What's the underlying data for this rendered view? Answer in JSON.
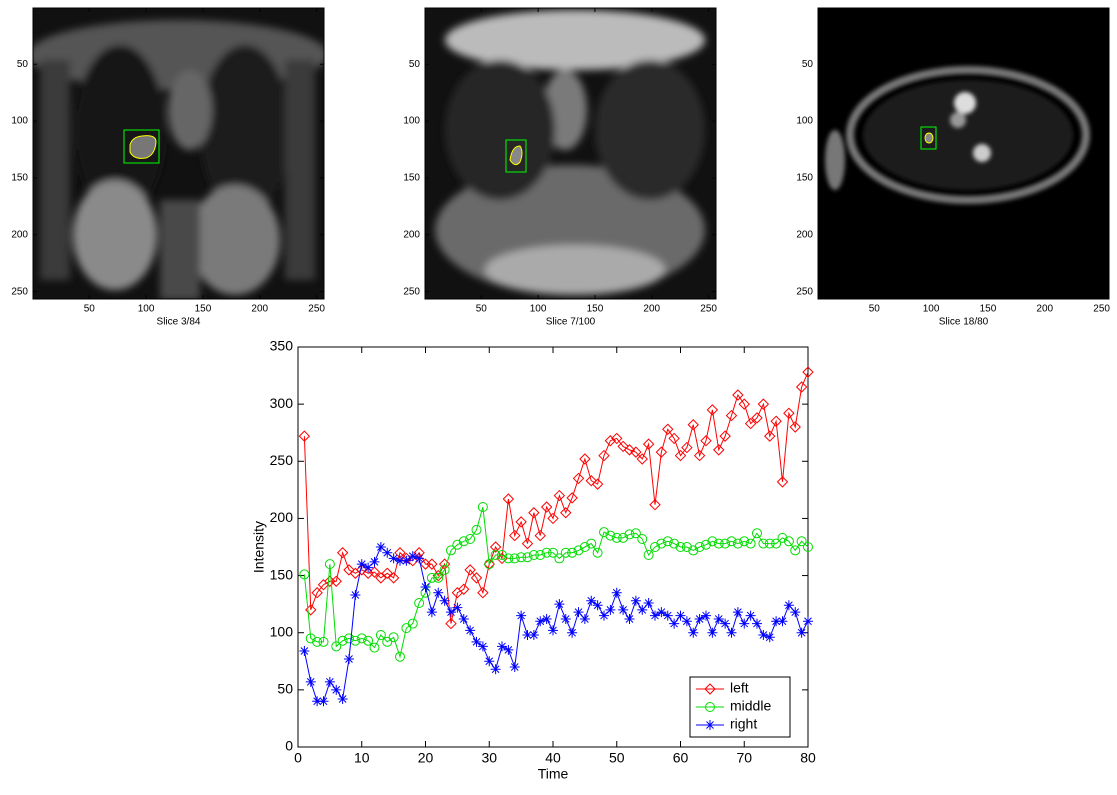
{
  "chart_data": [
    {
      "type": "image",
      "xlabel": "Slice 3/84",
      "xlim": [
        0.5,
        256.5
      ],
      "ylim": [
        0.5,
        256.5
      ],
      "y_reversed": true,
      "xticks": [
        50,
        100,
        150,
        200,
        250
      ],
      "yticks": [
        50,
        100,
        150,
        200,
        250
      ]
    },
    {
      "type": "image",
      "xlabel": "Slice 7/100",
      "xlim": [
        0.5,
        256.5
      ],
      "ylim": [
        0.5,
        256.5
      ],
      "y_reversed": true,
      "xticks": [
        50,
        100,
        150,
        200,
        250
      ],
      "yticks": [
        50,
        100,
        150,
        200,
        250
      ]
    },
    {
      "type": "image",
      "xlabel": "Slice 18/80",
      "xlim": [
        0.5,
        256.5
      ],
      "ylim": [
        0.5,
        256.5
      ],
      "y_reversed": true,
      "xticks": [
        50,
        100,
        150,
        200,
        250
      ],
      "yticks": [
        50,
        100,
        150,
        200,
        250
      ]
    },
    {
      "type": "line",
      "xlabel": "Time",
      "ylabel": "Intensity",
      "xlim": [
        0,
        80
      ],
      "ylim": [
        0,
        350
      ],
      "xticks": [
        0,
        10,
        20,
        30,
        40,
        50,
        60,
        70,
        80
      ],
      "yticks": [
        0,
        50,
        100,
        150,
        200,
        250,
        300,
        350
      ],
      "legend": "lower right",
      "x": [
        1,
        2,
        3,
        4,
        5,
        6,
        7,
        8,
        9,
        10,
        11,
        12,
        13,
        14,
        15,
        16,
        17,
        18,
        19,
        20,
        21,
        22,
        23,
        24,
        25,
        26,
        27,
        28,
        29,
        30,
        31,
        32,
        33,
        34,
        35,
        36,
        37,
        38,
        39,
        40,
        41,
        42,
        43,
        44,
        45,
        46,
        47,
        48,
        49,
        50,
        51,
        52,
        53,
        54,
        55,
        56,
        57,
        58,
        59,
        60,
        61,
        62,
        63,
        64,
        65,
        66,
        67,
        68,
        69,
        70,
        71,
        72,
        73,
        74,
        75,
        76,
        77,
        78,
        79,
        80
      ],
      "series": [
        {
          "name": "left",
          "color": "#ff0000",
          "marker": "diamond",
          "values": [
            272,
            120,
            135,
            142,
            145,
            145,
            170,
            155,
            152,
            155,
            152,
            153,
            148,
            152,
            148,
            170,
            165,
            163,
            170,
            160,
            160,
            150,
            160,
            108,
            135,
            138,
            155,
            148,
            135,
            160,
            175,
            165,
            217,
            185,
            197,
            178,
            205,
            185,
            210,
            200,
            220,
            205,
            218,
            235,
            252,
            233,
            230,
            255,
            268,
            270,
            263,
            260,
            258,
            252,
            265,
            212,
            258,
            278,
            270,
            255,
            262,
            282,
            255,
            268,
            295,
            260,
            272,
            290,
            308,
            300,
            283,
            288,
            300,
            272,
            285,
            232,
            292,
            280,
            315,
            328
          ]
        },
        {
          "name": "middle",
          "color": "#00dd00",
          "marker": "circle",
          "values": [
            151,
            95,
            92,
            92,
            160,
            88,
            93,
            95,
            93,
            95,
            93,
            87,
            98,
            92,
            96,
            79,
            104,
            108,
            126,
            135,
            148,
            148,
            155,
            172,
            177,
            180,
            182,
            190,
            210,
            160,
            168,
            168,
            165,
            165,
            166,
            166,
            168,
            168,
            170,
            170,
            165,
            170,
            170,
            172,
            175,
            178,
            170,
            188,
            185,
            183,
            183,
            186,
            187,
            182,
            168,
            175,
            178,
            180,
            178,
            175,
            175,
            172,
            175,
            177,
            180,
            178,
            178,
            180,
            178,
            180,
            178,
            187,
            178,
            178,
            178,
            183,
            180,
            172,
            180,
            175
          ]
        },
        {
          "name": "right",
          "color": "#0000ff",
          "marker": "star",
          "values": [
            84,
            57,
            40,
            40,
            57,
            50,
            42,
            77,
            133,
            160,
            157,
            162,
            175,
            170,
            165,
            163,
            163,
            167,
            165,
            140,
            118,
            135,
            128,
            118,
            122,
            112,
            102,
            92,
            88,
            75,
            68,
            88,
            85,
            70,
            115,
            98,
            98,
            110,
            112,
            102,
            125,
            112,
            100,
            118,
            112,
            128,
            124,
            115,
            120,
            135,
            120,
            112,
            128,
            120,
            126,
            115,
            118,
            115,
            108,
            115,
            110,
            100,
            112,
            115,
            100,
            112,
            108,
            100,
            118,
            108,
            115,
            108,
            98,
            96,
            110,
            110,
            124,
            118,
            100,
            110
          ]
        }
      ]
    }
  ]
}
